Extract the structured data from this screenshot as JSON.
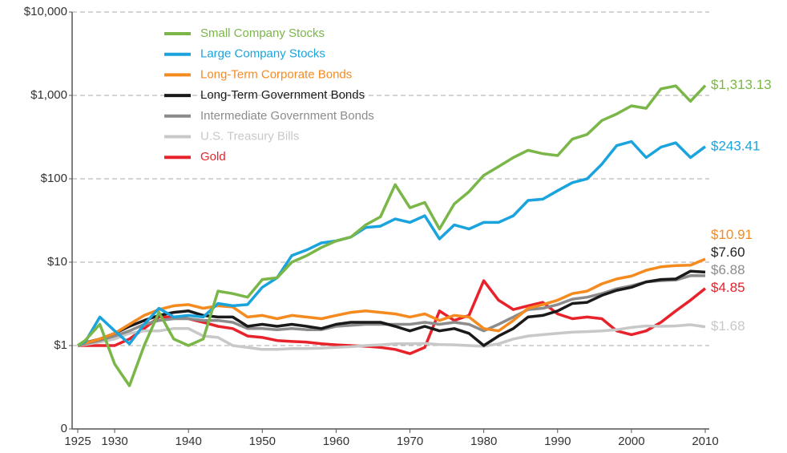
{
  "chart_data": {
    "type": "line",
    "log_y": true,
    "grid": true,
    "legend": "upper left",
    "xlim": [
      1925,
      2010
    ],
    "xticks": [
      1925,
      1930,
      1940,
      1950,
      1960,
      1970,
      1980,
      1990,
      2000,
      2010
    ],
    "ylim": [
      0.1,
      10000
    ],
    "yticks": [
      {
        "value": 0.1,
        "label": "0"
      },
      {
        "value": 1,
        "label": "$1"
      },
      {
        "value": 10,
        "label": "$10"
      },
      {
        "value": 100,
        "label": "$100"
      },
      {
        "value": 1000,
        "label": "$1,000"
      },
      {
        "value": 10000,
        "label": "$10,000"
      }
    ],
    "x": [
      1925,
      1926,
      1928,
      1930,
      1932,
      1934,
      1936,
      1938,
      1940,
      1942,
      1944,
      1946,
      1948,
      1950,
      1952,
      1954,
      1956,
      1958,
      1960,
      1962,
      1964,
      1966,
      1968,
      1970,
      1972,
      1974,
      1976,
      1978,
      1980,
      1982,
      1984,
      1986,
      1988,
      1990,
      1992,
      1994,
      1996,
      1998,
      2000,
      2002,
      2004,
      2006,
      2008,
      2010
    ],
    "series": [
      {
        "name": "Small Company Stocks",
        "color": "#7ab648",
        "end_label": "$1,313.13",
        "values": [
          1,
          1.15,
          1.8,
          0.6,
          0.33,
          1.0,
          2.5,
          1.2,
          1.0,
          1.2,
          4.5,
          4.2,
          3.8,
          6.2,
          6.5,
          10,
          12,
          15,
          18,
          20,
          28,
          35,
          85,
          45,
          52,
          25,
          50,
          70,
          110,
          140,
          180,
          220,
          200,
          190,
          300,
          340,
          500,
          600,
          750,
          700,
          1200,
          1300,
          850,
          1313.13
        ]
      },
      {
        "name": "Large Company Stocks",
        "color": "#1aa3dd",
        "end_label": "$243.41",
        "values": [
          1,
          1.1,
          2.2,
          1.5,
          1.05,
          1.8,
          2.8,
          2.2,
          2.3,
          2.2,
          3.2,
          3.0,
          3.1,
          5,
          6.5,
          12,
          14,
          17,
          18,
          20,
          26,
          27,
          33,
          30,
          36,
          19,
          28,
          25,
          30,
          30,
          36,
          55,
          57,
          72,
          90,
          100,
          150,
          250,
          280,
          180,
          240,
          270,
          180,
          243.41
        ]
      },
      {
        "name": "Long-Term Corporate Bonds",
        "color": "#f58a1f",
        "end_label": "$10.91",
        "values": [
          1,
          1.07,
          1.2,
          1.4,
          1.8,
          2.3,
          2.7,
          3.0,
          3.1,
          2.8,
          3.0,
          2.9,
          2.2,
          2.3,
          2.1,
          2.3,
          2.2,
          2.1,
          2.3,
          2.5,
          2.6,
          2.5,
          2.4,
          2.2,
          2.4,
          2.0,
          2.3,
          2.2,
          1.6,
          1.5,
          2.0,
          2.8,
          3.1,
          3.5,
          4.2,
          4.5,
          5.5,
          6.3,
          6.8,
          8,
          8.8,
          9.1,
          9.2,
          10.91
        ]
      },
      {
        "name": "Long-Term Government Bonds",
        "color": "#1a1a1a",
        "end_label": "$7.60",
        "values": [
          1,
          1.08,
          1.2,
          1.4,
          1.7,
          2.0,
          2.3,
          2.5,
          2.6,
          2.3,
          2.2,
          2.2,
          1.7,
          1.8,
          1.7,
          1.8,
          1.7,
          1.6,
          1.8,
          1.9,
          1.9,
          1.9,
          1.7,
          1.5,
          1.7,
          1.5,
          1.6,
          1.4,
          1.0,
          1.3,
          1.6,
          2.2,
          2.3,
          2.6,
          3.2,
          3.3,
          4.0,
          4.6,
          5.0,
          5.8,
          6.2,
          6.3,
          7.8,
          7.6
        ]
      },
      {
        "name": "Intermediate Government Bonds",
        "color": "#8c8c8c",
        "end_label": "$6.88",
        "values": [
          1,
          1.05,
          1.15,
          1.3,
          1.5,
          1.8,
          2.0,
          2.1,
          2.1,
          2.0,
          2.0,
          1.9,
          1.6,
          1.6,
          1.55,
          1.6,
          1.55,
          1.55,
          1.7,
          1.75,
          1.8,
          1.8,
          1.8,
          1.8,
          1.9,
          1.8,
          1.9,
          1.8,
          1.5,
          1.8,
          2.2,
          2.7,
          2.8,
          3.1,
          3.6,
          3.8,
          4.2,
          4.8,
          5.2,
          5.8,
          6.0,
          6.1,
          6.9,
          6.88
        ]
      },
      {
        "name": "U.S. Treasury Bills",
        "color": "#c8c8c8",
        "end_label": "$1.68",
        "values": [
          1,
          1.03,
          1.1,
          1.2,
          1.4,
          1.5,
          1.5,
          1.6,
          1.6,
          1.3,
          1.25,
          1.0,
          0.95,
          0.9,
          0.9,
          0.92,
          0.92,
          0.93,
          0.95,
          0.97,
          1.0,
          1.02,
          1.05,
          1.05,
          1.06,
          1.03,
          1.02,
          1.0,
          0.98,
          1.05,
          1.2,
          1.3,
          1.35,
          1.4,
          1.45,
          1.47,
          1.5,
          1.55,
          1.65,
          1.72,
          1.7,
          1.72,
          1.78,
          1.68
        ]
      },
      {
        "name": "Gold",
        "color": "#e8222b",
        "end_label": "$4.85",
        "values": [
          1,
          1.0,
          1.0,
          1.0,
          1.2,
          1.6,
          2.2,
          2.2,
          2.1,
          1.9,
          1.7,
          1.6,
          1.3,
          1.25,
          1.15,
          1.12,
          1.1,
          1.05,
          1.02,
          1.0,
          0.98,
          0.95,
          0.9,
          0.8,
          0.95,
          2.6,
          2.0,
          2.3,
          6.0,
          3.5,
          2.7,
          3.0,
          3.3,
          2.4,
          2.1,
          2.2,
          2.1,
          1.5,
          1.35,
          1.5,
          1.9,
          2.6,
          3.5,
          4.85
        ]
      }
    ]
  }
}
